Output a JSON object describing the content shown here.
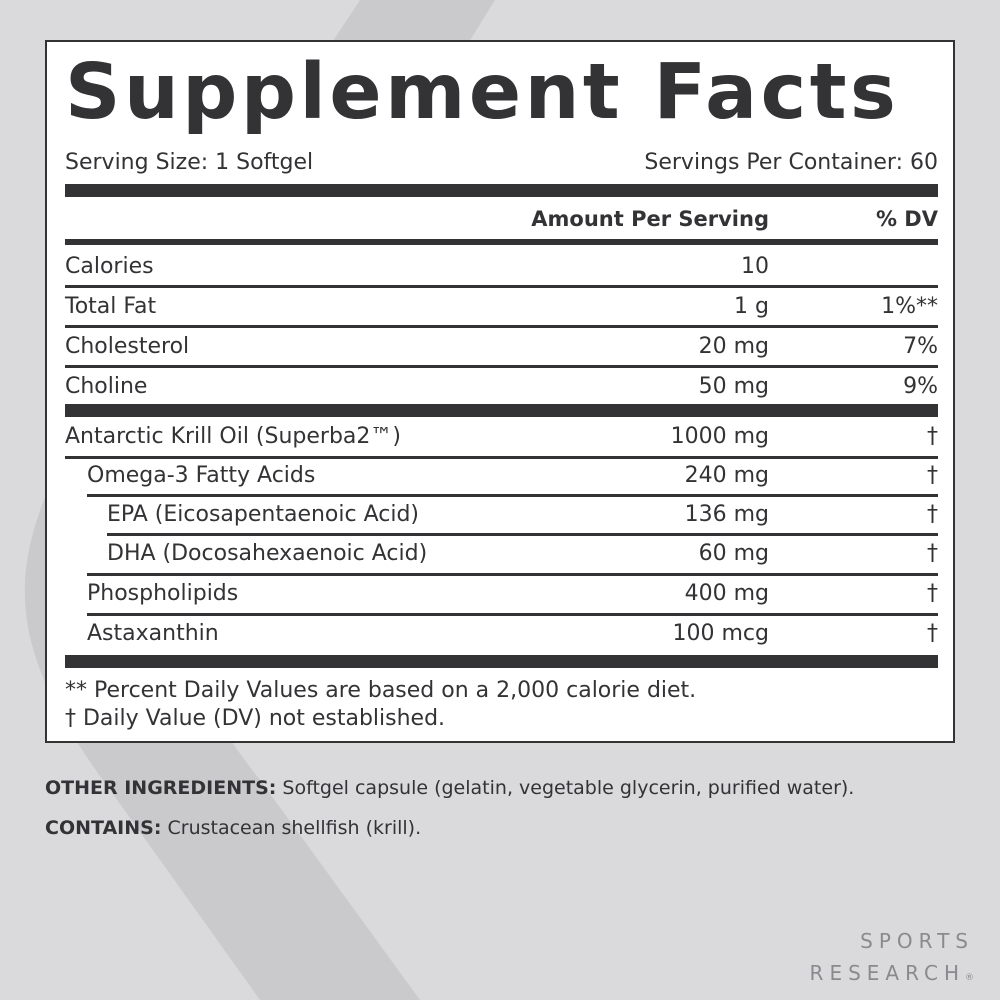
{
  "title": "Supplement Facts",
  "serving_size": "Serving Size: 1 Softgel",
  "servings_per_container": "Servings Per Container: 60",
  "headers": {
    "amount": "Amount Per Serving",
    "dv": "% DV"
  },
  "rows": [
    {
      "name": "Calories",
      "amount": "10",
      "dv": ""
    },
    {
      "name": "Total Fat",
      "amount": "1 g",
      "dv": "1%**"
    },
    {
      "name": "Cholesterol",
      "amount": "20 mg",
      "dv": "7%"
    },
    {
      "name": "Choline",
      "amount": "50 mg",
      "dv": "9%"
    },
    {
      "name": "Antarctic Krill Oil (Superba2™)",
      "amount": "1000 mg",
      "dv": "†"
    },
    {
      "name": "Omega-3 Fatty Acids",
      "amount": "240 mg",
      "dv": "†"
    },
    {
      "name": "EPA (Eicosapentaenoic Acid)",
      "amount": "136 mg",
      "dv": "†"
    },
    {
      "name": "DHA (Docosahexaenoic Acid)",
      "amount": "60 mg",
      "dv": "†"
    },
    {
      "name": "Phospholipids",
      "amount": "400 mg",
      "dv": "†"
    },
    {
      "name": "Astaxanthin",
      "amount": "100 mcg",
      "dv": "†"
    }
  ],
  "footnotes": [
    "** Percent Daily Values are based on a 2,000 calorie diet.",
    "†  Daily Value (DV) not established."
  ],
  "other_ingredients": {
    "label": "OTHER INGREDIENTS:",
    "text": " Softgel capsule (gelatin, vegetable glycerin, purified water)."
  },
  "contains": {
    "label": "CONTAINS:",
    "text": " Crustacean shellfish (krill)."
  },
  "brand": {
    "line1": "SPORTS",
    "line2": "RESEARCH",
    "mark": "®"
  },
  "colors": {
    "background": "#dadadd",
    "text": "#333336",
    "brand": "#8a8a8d"
  }
}
